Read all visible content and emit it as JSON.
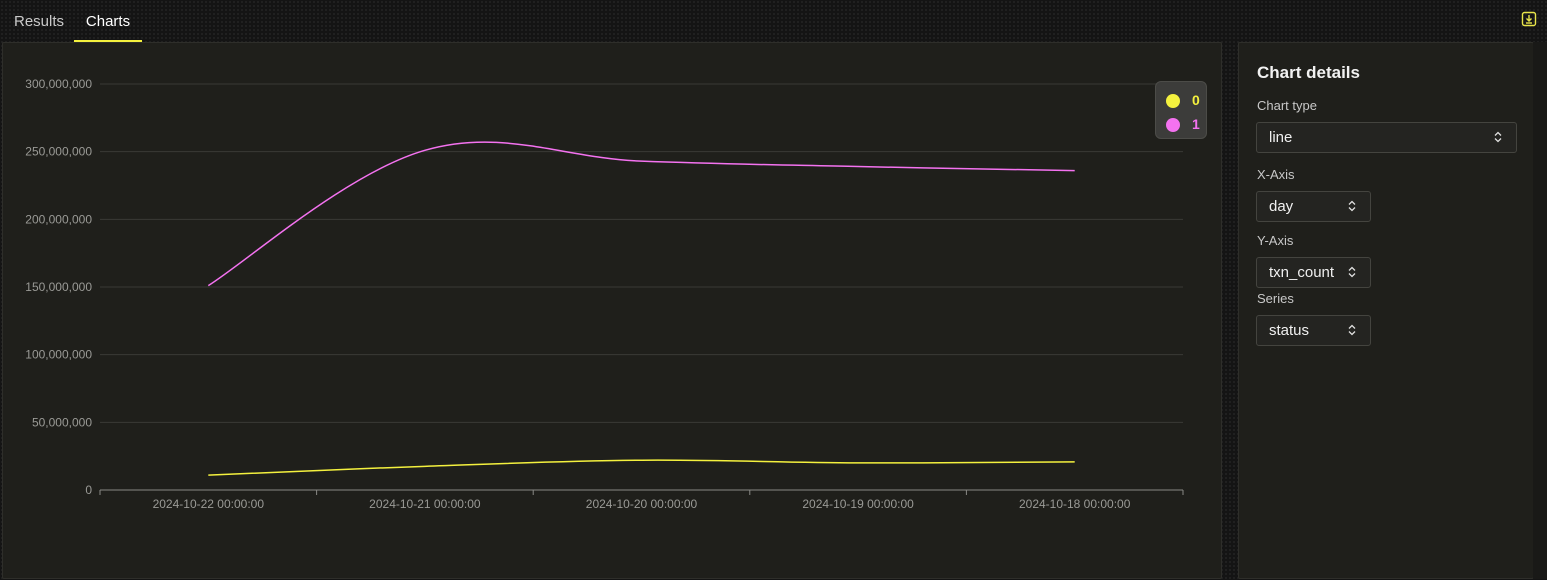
{
  "tabs": [
    {
      "label": "Results",
      "active": false
    },
    {
      "label": "Charts",
      "active": true
    }
  ],
  "toolbar": {
    "download_icon": "download-icon"
  },
  "colors": {
    "accent": "#f4f13e",
    "series_0": "#f4f13e",
    "series_1": "#f472f0"
  },
  "chart_data": {
    "type": "line",
    "x": [
      "2024-10-22 00:00:00",
      "2024-10-21 00:00:00",
      "2024-10-20 00:00:00",
      "2024-10-19 00:00:00",
      "2024-10-18 00:00:00"
    ],
    "y_ticks": [
      "0",
      "50,000,000",
      "100,000,000",
      "150,000,000",
      "200,000,000",
      "250,000,000",
      "300,000,000"
    ],
    "ylim": [
      0,
      300000000
    ],
    "series": [
      {
        "name": "0",
        "color": "#f4f13e",
        "values": [
          11000000,
          17500000,
          22000000,
          20000000,
          20800000
        ]
      },
      {
        "name": "1",
        "color": "#f472f0",
        "values": [
          151000000,
          251000000,
          243000000,
          239000000,
          236000000
        ]
      }
    ],
    "grid": true,
    "legend": "top-right"
  },
  "details": {
    "title": "Chart details",
    "chart_type": {
      "label": "Chart type",
      "value": "line"
    },
    "x_axis": {
      "label": "X-Axis",
      "value": "day"
    },
    "y_axis": {
      "label": "Y-Axis",
      "value": "txn_count"
    },
    "series": {
      "label": "Series",
      "value": "status"
    }
  }
}
